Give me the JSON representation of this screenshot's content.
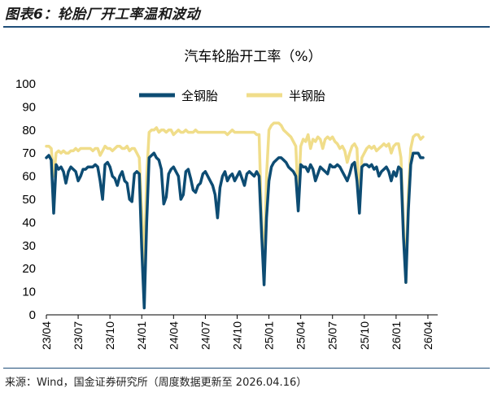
{
  "figure": {
    "title": "图表6：轮胎厂开工率温和波动",
    "source": "来源：Wind，国金证券研究所（周度数据更新至 2026.04.16）"
  },
  "colors": {
    "full_steel": "#0d4c73",
    "semi_steel": "#f0dd8a",
    "rule": "#1f4e79"
  },
  "chart_data": {
    "type": "line",
    "title": "汽车轮胎开工率（%）",
    "xlabel": "",
    "ylabel": "",
    "ylim": [
      0,
      100
    ],
    "yticks": [
      0,
      10,
      20,
      30,
      40,
      50,
      60,
      70,
      80,
      90,
      100
    ],
    "xlim": [
      0,
      160
    ],
    "x_unit": "weeks since 2023-04",
    "xticks": [
      {
        "label": "23/04",
        "x": 0
      },
      {
        "label": "23/07",
        "x": 13
      },
      {
        "label": "23/10",
        "x": 26
      },
      {
        "label": "24/01",
        "x": 39
      },
      {
        "label": "24/04",
        "x": 52
      },
      {
        "label": "24/07",
        "x": 65
      },
      {
        "label": "24/10",
        "x": 78
      },
      {
        "label": "25/01",
        "x": 91
      },
      {
        "label": "25/04",
        "x": 104
      },
      {
        "label": "25/07",
        "x": 117
      },
      {
        "label": "25/10",
        "x": 130
      },
      {
        "label": "26/01",
        "x": 143
      },
      {
        "label": "26/04",
        "x": 156
      }
    ],
    "legend": {
      "position": "top-center"
    },
    "series": [
      {
        "name": "全钢胎",
        "points": [
          [
            0,
            68
          ],
          [
            1,
            69
          ],
          [
            2,
            67
          ],
          [
            3,
            44
          ],
          [
            4,
            65
          ],
          [
            5,
            63
          ],
          [
            6,
            64
          ],
          [
            7,
            62
          ],
          [
            8,
            57
          ],
          [
            9,
            62
          ],
          [
            10,
            64
          ],
          [
            11,
            63
          ],
          [
            12,
            62
          ],
          [
            13,
            58
          ],
          [
            14,
            60
          ],
          [
            15,
            63
          ],
          [
            16,
            63
          ],
          [
            17,
            64
          ],
          [
            18,
            64
          ],
          [
            19,
            64
          ],
          [
            20,
            65
          ],
          [
            21,
            64
          ],
          [
            22,
            58
          ],
          [
            23,
            50
          ],
          [
            24,
            65
          ],
          [
            25,
            66
          ],
          [
            26,
            64
          ],
          [
            27,
            60
          ],
          [
            28,
            59
          ],
          [
            29,
            56
          ],
          [
            30,
            60
          ],
          [
            31,
            62
          ],
          [
            32,
            58
          ],
          [
            33,
            57
          ],
          [
            34,
            50
          ],
          [
            35,
            49
          ],
          [
            36,
            61
          ],
          [
            37,
            62
          ],
          [
            38,
            61
          ],
          [
            39,
            29
          ],
          [
            40,
            3
          ],
          [
            41,
            40
          ],
          [
            42,
            68
          ],
          [
            43,
            69
          ],
          [
            44,
            70
          ],
          [
            45,
            68
          ],
          [
            46,
            67
          ],
          [
            47,
            63
          ],
          [
            48,
            48
          ],
          [
            49,
            51
          ],
          [
            50,
            61
          ],
          [
            51,
            63
          ],
          [
            52,
            64
          ],
          [
            53,
            62
          ],
          [
            54,
            60
          ],
          [
            55,
            50
          ],
          [
            56,
            52
          ],
          [
            57,
            62
          ],
          [
            58,
            63
          ],
          [
            59,
            59
          ],
          [
            60,
            54
          ],
          [
            61,
            53
          ],
          [
            62,
            56
          ],
          [
            63,
            57
          ],
          [
            64,
            61
          ],
          [
            65,
            62
          ],
          [
            66,
            60
          ],
          [
            67,
            58
          ],
          [
            68,
            56
          ],
          [
            69,
            52
          ],
          [
            70,
            42
          ],
          [
            71,
            55
          ],
          [
            72,
            60
          ],
          [
            73,
            62
          ],
          [
            74,
            58
          ],
          [
            75,
            60
          ],
          [
            76,
            61
          ],
          [
            77,
            58
          ],
          [
            78,
            60
          ],
          [
            79,
            62
          ],
          [
            80,
            59
          ],
          [
            81,
            56
          ],
          [
            82,
            61
          ],
          [
            83,
            62
          ],
          [
            84,
            61
          ],
          [
            85,
            60
          ],
          [
            86,
            62
          ],
          [
            87,
            60
          ],
          [
            88,
            35
          ],
          [
            89,
            13
          ],
          [
            90,
            42
          ],
          [
            91,
            58
          ],
          [
            92,
            64
          ],
          [
            93,
            66
          ],
          [
            94,
            67
          ],
          [
            95,
            68
          ],
          [
            96,
            68
          ],
          [
            97,
            67
          ],
          [
            98,
            66
          ],
          [
            99,
            64
          ],
          [
            100,
            63
          ],
          [
            101,
            62
          ],
          [
            102,
            60
          ],
          [
            103,
            45
          ],
          [
            104,
            65
          ],
          [
            105,
            64
          ],
          [
            106,
            64
          ],
          [
            107,
            62
          ],
          [
            108,
            65
          ],
          [
            109,
            63
          ],
          [
            110,
            58
          ],
          [
            111,
            61
          ],
          [
            112,
            64
          ],
          [
            113,
            63
          ],
          [
            114,
            62
          ],
          [
            115,
            61
          ],
          [
            116,
            65
          ],
          [
            117,
            64
          ],
          [
            118,
            64
          ],
          [
            119,
            65
          ],
          [
            120,
            64
          ],
          [
            121,
            62
          ],
          [
            122,
            60
          ],
          [
            123,
            58
          ],
          [
            124,
            61
          ],
          [
            125,
            65
          ],
          [
            126,
            66
          ],
          [
            127,
            58
          ],
          [
            128,
            44
          ],
          [
            129,
            64
          ],
          [
            130,
            65
          ],
          [
            131,
            65
          ],
          [
            132,
            64
          ],
          [
            133,
            65
          ],
          [
            134,
            63
          ],
          [
            135,
            64
          ],
          [
            136,
            60
          ],
          [
            137,
            62
          ],
          [
            138,
            63
          ],
          [
            139,
            64
          ],
          [
            140,
            62
          ],
          [
            141,
            58
          ],
          [
            142,
            62
          ],
          [
            143,
            60
          ],
          [
            144,
            64
          ],
          [
            145,
            63
          ],
          [
            146,
            34
          ],
          [
            147,
            14
          ],
          [
            148,
            45
          ],
          [
            149,
            65
          ],
          [
            150,
            70
          ],
          [
            151,
            70
          ],
          [
            152,
            70
          ],
          [
            153,
            68
          ],
          [
            154,
            68
          ]
        ]
      },
      {
        "name": "半钢胎",
        "points": [
          [
            0,
            73
          ],
          [
            1,
            73
          ],
          [
            2,
            72
          ],
          [
            3,
            60
          ],
          [
            4,
            70
          ],
          [
            5,
            71
          ],
          [
            6,
            70
          ],
          [
            7,
            71
          ],
          [
            8,
            70
          ],
          [
            9,
            70
          ],
          [
            10,
            71
          ],
          [
            11,
            71
          ],
          [
            12,
            72
          ],
          [
            13,
            71
          ],
          [
            14,
            72
          ],
          [
            15,
            72
          ],
          [
            16,
            72
          ],
          [
            17,
            72
          ],
          [
            18,
            72
          ],
          [
            19,
            71
          ],
          [
            20,
            72
          ],
          [
            21,
            72
          ],
          [
            22,
            69
          ],
          [
            23,
            71
          ],
          [
            24,
            73
          ],
          [
            25,
            72
          ],
          [
            26,
            72
          ],
          [
            27,
            71
          ],
          [
            28,
            72
          ],
          [
            29,
            73
          ],
          [
            30,
            73
          ],
          [
            31,
            72
          ],
          [
            32,
            72
          ],
          [
            33,
            73
          ],
          [
            34,
            71
          ],
          [
            35,
            72
          ],
          [
            36,
            72
          ],
          [
            37,
            70
          ],
          [
            38,
            68
          ],
          [
            39,
            45
          ],
          [
            40,
            21
          ],
          [
            41,
            60
          ],
          [
            42,
            79
          ],
          [
            43,
            80
          ],
          [
            44,
            80
          ],
          [
            45,
            81
          ],
          [
            46,
            79
          ],
          [
            47,
            80
          ],
          [
            48,
            80
          ],
          [
            49,
            79
          ],
          [
            50,
            80
          ],
          [
            51,
            80
          ],
          [
            52,
            78
          ],
          [
            53,
            79
          ],
          [
            54,
            80
          ],
          [
            55,
            79
          ],
          [
            56,
            79
          ],
          [
            57,
            80
          ],
          [
            58,
            79
          ],
          [
            59,
            79
          ],
          [
            60,
            79
          ],
          [
            61,
            80
          ],
          [
            62,
            79
          ],
          [
            63,
            79
          ],
          [
            64,
            79
          ],
          [
            65,
            79
          ],
          [
            66,
            79
          ],
          [
            67,
            79
          ],
          [
            68,
            79
          ],
          [
            69,
            79
          ],
          [
            70,
            79
          ],
          [
            71,
            79
          ],
          [
            72,
            79
          ],
          [
            73,
            79
          ],
          [
            74,
            78
          ],
          [
            75,
            79
          ],
          [
            76,
            80
          ],
          [
            77,
            79
          ],
          [
            78,
            79
          ],
          [
            79,
            79
          ],
          [
            80,
            79
          ],
          [
            81,
            79
          ],
          [
            82,
            79
          ],
          [
            83,
            79
          ],
          [
            84,
            79
          ],
          [
            85,
            79
          ],
          [
            86,
            78
          ],
          [
            87,
            78
          ],
          [
            88,
            40
          ],
          [
            89,
            20
          ],
          [
            90,
            60
          ],
          [
            91,
            80
          ],
          [
            92,
            82
          ],
          [
            93,
            83
          ],
          [
            94,
            83
          ],
          [
            95,
            83
          ],
          [
            96,
            82
          ],
          [
            97,
            80
          ],
          [
            98,
            79
          ],
          [
            99,
            78
          ],
          [
            100,
            77
          ],
          [
            101,
            75
          ],
          [
            102,
            73
          ],
          [
            103,
            50
          ],
          [
            104,
            73
          ],
          [
            105,
            76
          ],
          [
            106,
            75
          ],
          [
            107,
            78
          ],
          [
            108,
            72
          ],
          [
            109,
            76
          ],
          [
            110,
            75
          ],
          [
            111,
            77
          ],
          [
            112,
            76
          ],
          [
            113,
            72
          ],
          [
            114,
            76
          ],
          [
            115,
            77
          ],
          [
            116,
            76
          ],
          [
            117,
            77
          ],
          [
            118,
            75
          ],
          [
            119,
            74
          ],
          [
            120,
            72
          ],
          [
            121,
            73
          ],
          [
            122,
            71
          ],
          [
            123,
            66
          ],
          [
            124,
            70
          ],
          [
            125,
            73
          ],
          [
            126,
            74
          ],
          [
            127,
            72
          ],
          [
            128,
            48
          ],
          [
            129,
            68
          ],
          [
            130,
            70
          ],
          [
            131,
            72
          ],
          [
            132,
            73
          ],
          [
            133,
            72
          ],
          [
            134,
            73
          ],
          [
            135,
            71
          ],
          [
            136,
            72
          ],
          [
            137,
            73
          ],
          [
            138,
            74
          ],
          [
            139,
            73
          ],
          [
            140,
            74
          ],
          [
            141,
            70
          ],
          [
            142,
            73
          ],
          [
            143,
            74
          ],
          [
            144,
            74
          ],
          [
            145,
            68
          ],
          [
            146,
            40
          ],
          [
            147,
            14
          ],
          [
            148,
            52
          ],
          [
            149,
            72
          ],
          [
            150,
            77
          ],
          [
            151,
            78
          ],
          [
            152,
            78
          ],
          [
            153,
            76
          ],
          [
            154,
            77
          ]
        ]
      }
    ]
  }
}
